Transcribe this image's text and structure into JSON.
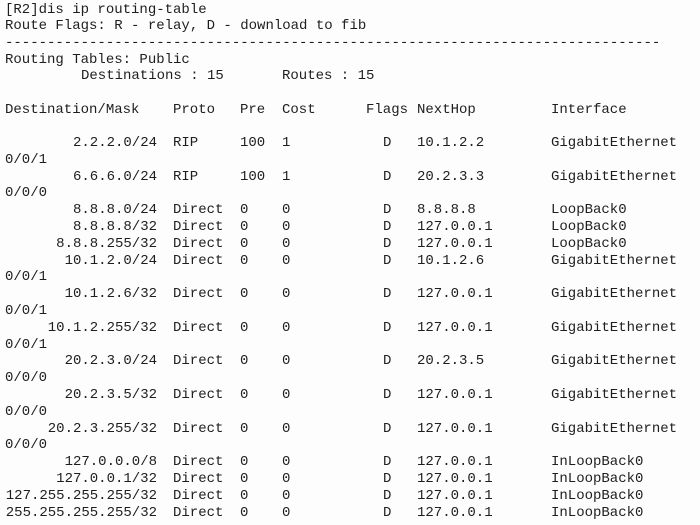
{
  "command": "[R2]dis ip routing-table",
  "route_flags": "Route Flags: R - relay, D - download to fib",
  "separator": "------------------------------------------------------------------------------",
  "table_title": "Routing Tables: Public",
  "destinations": "Destinations : 15",
  "routes": "Routes : 15",
  "columns": [
    "Destination/Mask",
    "Proto",
    "Pre",
    "Cost",
    "Flags",
    "NextHop",
    "Interface"
  ],
  "rows": [
    {
      "destination": "2.2.2.0/24",
      "proto": "RIP",
      "pre": 100,
      "cost": 1,
      "flags": "D",
      "nexthop": "10.1.2.2",
      "interface": "GigabitEthernet",
      "interface_wrap": "0/0/1"
    },
    {
      "destination": "6.6.6.0/24",
      "proto": "RIP",
      "pre": 100,
      "cost": 1,
      "flags": "D",
      "nexthop": "20.2.3.3",
      "interface": "GigabitEthernet",
      "interface_wrap": "0/0/0"
    },
    {
      "destination": "8.8.8.0/24",
      "proto": "Direct",
      "pre": 0,
      "cost": 0,
      "flags": "D",
      "nexthop": "8.8.8.8",
      "interface": "LoopBack0"
    },
    {
      "destination": "8.8.8.8/32",
      "proto": "Direct",
      "pre": 0,
      "cost": 0,
      "flags": "D",
      "nexthop": "127.0.0.1",
      "interface": "LoopBack0"
    },
    {
      "destination": "8.8.8.255/32",
      "proto": "Direct",
      "pre": 0,
      "cost": 0,
      "flags": "D",
      "nexthop": "127.0.0.1",
      "interface": "LoopBack0"
    },
    {
      "destination": "10.1.2.0/24",
      "proto": "Direct",
      "pre": 0,
      "cost": 0,
      "flags": "D",
      "nexthop": "10.1.2.6",
      "interface": "GigabitEthernet",
      "interface_wrap": "0/0/1"
    },
    {
      "destination": "10.1.2.6/32",
      "proto": "Direct",
      "pre": 0,
      "cost": 0,
      "flags": "D",
      "nexthop": "127.0.0.1",
      "interface": "GigabitEthernet",
      "interface_wrap": "0/0/1"
    },
    {
      "destination": "10.1.2.255/32",
      "proto": "Direct",
      "pre": 0,
      "cost": 0,
      "flags": "D",
      "nexthop": "127.0.0.1",
      "interface": "GigabitEthernet",
      "interface_wrap": "0/0/1"
    },
    {
      "destination": "20.2.3.0/24",
      "proto": "Direct",
      "pre": 0,
      "cost": 0,
      "flags": "D",
      "nexthop": "20.2.3.5",
      "interface": "GigabitEthernet",
      "interface_wrap": "0/0/0"
    },
    {
      "destination": "20.2.3.5/32",
      "proto": "Direct",
      "pre": 0,
      "cost": 0,
      "flags": "D",
      "nexthop": "127.0.0.1",
      "interface": "GigabitEthernet",
      "interface_wrap": "0/0/0"
    },
    {
      "destination": "20.2.3.255/32",
      "proto": "Direct",
      "pre": 0,
      "cost": 0,
      "flags": "D",
      "nexthop": "127.0.0.1",
      "interface": "GigabitEthernet",
      "interface_wrap": "0/0/0"
    },
    {
      "destination": "127.0.0.0/8",
      "proto": "Direct",
      "pre": 0,
      "cost": 0,
      "flags": "D",
      "nexthop": "127.0.0.1",
      "interface": "InLoopBack0"
    },
    {
      "destination": "127.0.0.1/32",
      "proto": "Direct",
      "pre": 0,
      "cost": 0,
      "flags": "D",
      "nexthop": "127.0.0.1",
      "interface": "InLoopBack0"
    },
    {
      "destination": "127.255.255.255/32",
      "proto": "Direct",
      "pre": 0,
      "cost": 0,
      "flags": "D",
      "nexthop": "127.0.0.1",
      "interface": "InLoopBack0"
    },
    {
      "destination": "255.255.255.255/32",
      "proto": "Direct",
      "pre": 0,
      "cost": 0,
      "flags": "D",
      "nexthop": "127.0.0.1",
      "interface": "InLoopBack0"
    }
  ]
}
